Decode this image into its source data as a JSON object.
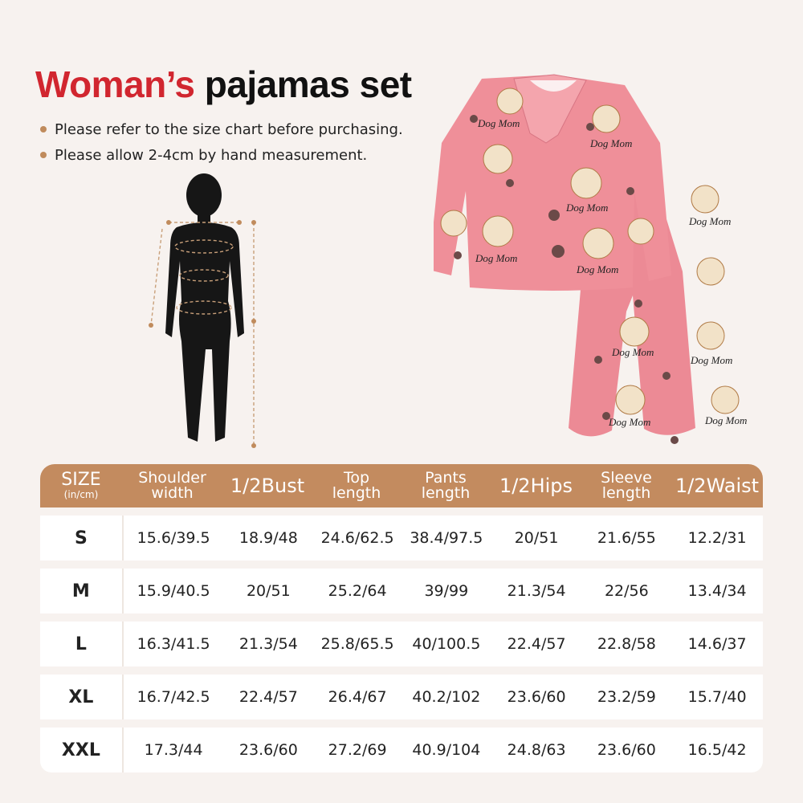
{
  "title": {
    "highlight": "Woman’s",
    "rest": "pajamas set"
  },
  "notes": [
    "Please refer to the size chart before purchasing.",
    "Please allow 2-4cm by hand measurement."
  ],
  "pajama_print_text": "Dog Mom",
  "colors": {
    "accent_red": "#d1262f",
    "header_brown": "#c38b5f",
    "pajama_pink": "#ec8a95"
  },
  "table": {
    "headers": [
      {
        "line1": "SIZE",
        "line2": "(in/cm)"
      },
      {
        "line1": "Shoulder",
        "line2": "width"
      },
      {
        "line1": "1/2Bust",
        "line2": ""
      },
      {
        "line1": "Top",
        "line2": "length"
      },
      {
        "line1": "Pants",
        "line2": "length"
      },
      {
        "line1": "1/2Hips",
        "line2": ""
      },
      {
        "line1": "Sleeve",
        "line2": "length"
      },
      {
        "line1": "1/2Waist",
        "line2": ""
      }
    ],
    "rows": [
      [
        "S",
        "15.6/39.5",
        "18.9/48",
        "24.6/62.5",
        "38.4/97.5",
        "20/51",
        "21.6/55",
        "12.2/31"
      ],
      [
        "M",
        "15.9/40.5",
        "20/51",
        "25.2/64",
        "39/99",
        "21.3/54",
        "22/56",
        "13.4/34"
      ],
      [
        "L",
        "16.3/41.5",
        "21.3/54",
        "25.8/65.5",
        "40/100.5",
        "22.4/57",
        "22.8/58",
        "14.6/37"
      ],
      [
        "XL",
        "16.7/42.5",
        "22.4/57",
        "26.4/67",
        "40.2/102",
        "23.6/60",
        "23.2/59",
        "15.7/40"
      ],
      [
        "XXL",
        "17.3/44",
        "23.6/60",
        "27.2/69",
        "40.9/104",
        "24.8/63",
        "23.6/60",
        "16.5/42"
      ]
    ]
  }
}
